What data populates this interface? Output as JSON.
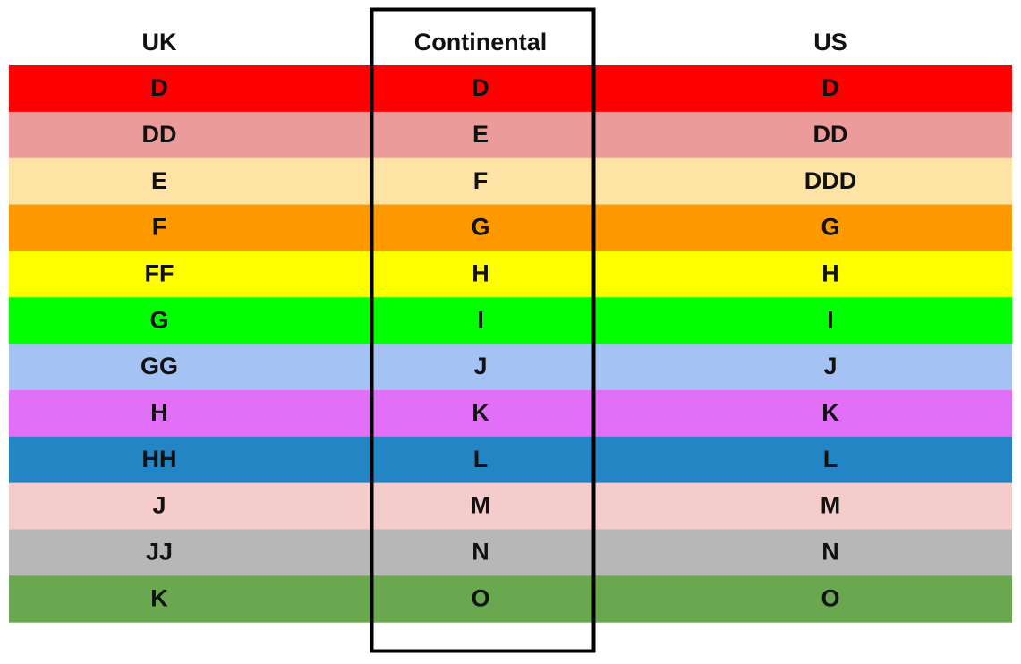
{
  "table": {
    "headers": [
      "UK",
      "Continental",
      "US"
    ],
    "rows": [
      [
        "D",
        "D",
        "D"
      ],
      [
        "DD",
        "E",
        "DD"
      ],
      [
        "E",
        "F",
        "DDD"
      ],
      [
        "F",
        "G",
        "G"
      ],
      [
        "FF",
        "H",
        "H"
      ],
      [
        "G",
        "I",
        "I"
      ],
      [
        "GG",
        "J",
        "J"
      ],
      [
        "H",
        "K",
        "K"
      ],
      [
        "HH",
        "L",
        "L"
      ],
      [
        "J",
        "M",
        "M"
      ],
      [
        "JJ",
        "N",
        "N"
      ],
      [
        "K",
        "O",
        "O"
      ]
    ]
  }
}
